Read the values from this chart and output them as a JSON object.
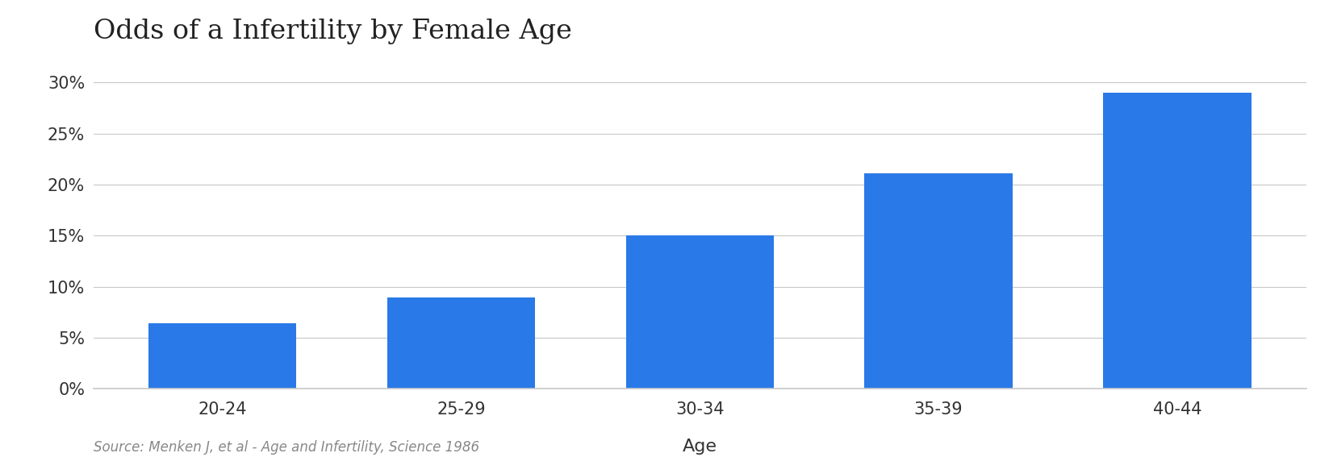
{
  "title": "Odds of a Infertility by Female Age",
  "categories": [
    "20-24",
    "25-29",
    "30-34",
    "35-39",
    "40-44"
  ],
  "values": [
    0.064,
    0.089,
    0.15,
    0.211,
    0.29
  ],
  "bar_color": "#2979E8",
  "xlabel": "Age",
  "source_text": "Source: Menken J, et al - Age and Infertility, Science 1986",
  "yticks": [
    0.0,
    0.05,
    0.1,
    0.15,
    0.2,
    0.25,
    0.3
  ],
  "ytick_labels": [
    "0%",
    "5%",
    "10%",
    "15%",
    "20%",
    "25%",
    "30%"
  ],
  "ylim": [
    0,
    0.325
  ],
  "background_color": "#ffffff",
  "grid_color": "#c8c8c8",
  "title_fontsize": 24,
  "tick_fontsize": 15,
  "source_fontsize": 12,
  "xlabel_fontsize": 16
}
